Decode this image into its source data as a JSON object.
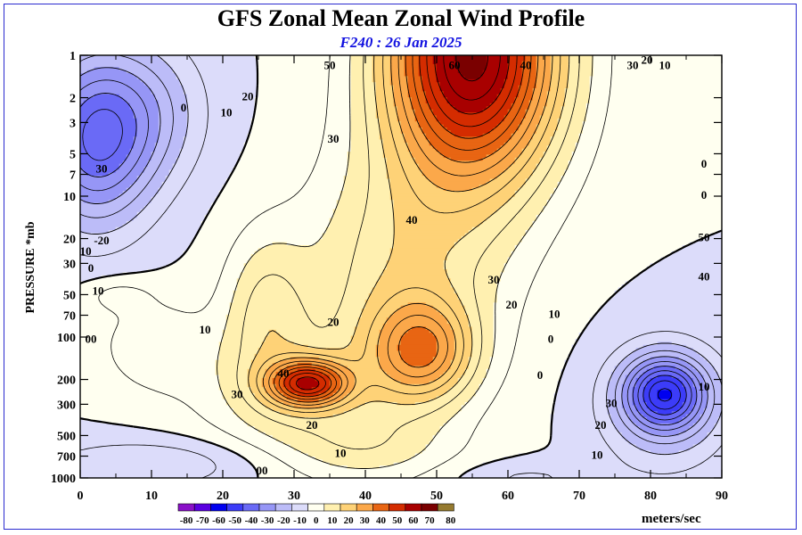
{
  "chart_data": {
    "type": "heatmap",
    "title": "GFS Zonal Mean Zonal Wind Profile",
    "subtitle": "F240 : 26 Jan 2025",
    "ylabel": "PRESSURE *mb",
    "xlabel": "",
    "x_ticks": [
      0,
      10,
      20,
      30,
      40,
      50,
      60,
      70,
      80,
      90
    ],
    "xlim": [
      0,
      90
    ],
    "y_ticks": [
      1,
      2,
      3,
      5,
      7,
      10,
      20,
      30,
      50,
      70,
      100,
      200,
      300,
      500,
      700,
      1000
    ],
    "ylim": [
      1000,
      1
    ],
    "y_scale": "log",
    "colorbar": {
      "levels": [
        -80,
        -70,
        -60,
        -50,
        -40,
        -30,
        -20,
        -10,
        0,
        10,
        20,
        30,
        40,
        50,
        60,
        70,
        80
      ],
      "colors": [
        "#8a10c8",
        "#5a00e0",
        "#0000f0",
        "#3c3cf8",
        "#6a6af6",
        "#9696f6",
        "#bcbcf8",
        "#dcdcfa",
        "#fffff0",
        "#fff0b0",
        "#fed277",
        "#fba84a",
        "#e86513",
        "#d42c00",
        "#a80000",
        "#7a0000",
        "#957a2f"
      ],
      "units_label": "meters/sec"
    },
    "contour_labels": [
      {
        "text": "30",
        "x": 3.0,
        "p": 6.5
      },
      {
        "text": "-20",
        "x": 3.0,
        "p": 21
      },
      {
        "text": "-10",
        "x": 0.5,
        "p": 25
      },
      {
        "text": "0",
        "x": 1.5,
        "p": 33
      },
      {
        "text": "10",
        "x": 2.5,
        "p": 48
      },
      {
        "text": "00",
        "x": 1.5,
        "p": 105
      },
      {
        "text": "0",
        "x": 14.5,
        "p": 2.4
      },
      {
        "text": "10",
        "x": 20.5,
        "p": 2.6
      },
      {
        "text": "20",
        "x": 23.5,
        "p": 2.0
      },
      {
        "text": "30",
        "x": 35.5,
        "p": 4.0
      },
      {
        "text": "50",
        "x": 35.0,
        "p": 1.2
      },
      {
        "text": "60",
        "x": 52.5,
        "p": 1.2
      },
      {
        "text": "40",
        "x": 46.5,
        "p": 15.0
      },
      {
        "text": "10",
        "x": 17.5,
        "p": 90
      },
      {
        "text": "20",
        "x": 35.5,
        "p": 80
      },
      {
        "text": "40",
        "x": 28.5,
        "p": 185
      },
      {
        "text": "30",
        "x": 22.0,
        "p": 260
      },
      {
        "text": "20",
        "x": 32.5,
        "p": 430
      },
      {
        "text": "10",
        "x": 36.5,
        "p": 680
      },
      {
        "text": "00",
        "x": 25.5,
        "p": 900
      },
      {
        "text": "30",
        "x": 58.0,
        "p": 40
      },
      {
        "text": "20",
        "x": 60.5,
        "p": 60
      },
      {
        "text": "10",
        "x": 66.5,
        "p": 70
      },
      {
        "text": "0",
        "x": 66.0,
        "p": 105
      },
      {
        "text": "0",
        "x": 64.5,
        "p": 190
      },
      {
        "text": "30",
        "x": 74.5,
        "p": 300
      },
      {
        "text": "20",
        "x": 73.0,
        "p": 430
      },
      {
        "text": "10",
        "x": 72.5,
        "p": 700
      },
      {
        "text": "30",
        "x": 77.5,
        "p": 1.2
      },
      {
        "text": "20",
        "x": 79.5,
        "p": 1.1
      },
      {
        "text": "10",
        "x": 82.0,
        "p": 1.2
      },
      {
        "text": "40",
        "x": 62.5,
        "p": 1.2
      },
      {
        "text": "0",
        "x": 87.5,
        "p": 6.0
      },
      {
        "text": "0",
        "x": 87.5,
        "p": 10.0
      },
      {
        "text": "50",
        "x": 87.5,
        "p": 20.0
      },
      {
        "text": "40",
        "x": 87.5,
        "p": 38.0
      },
      {
        "text": "10",
        "x": 87.5,
        "p": 230.0
      }
    ]
  }
}
